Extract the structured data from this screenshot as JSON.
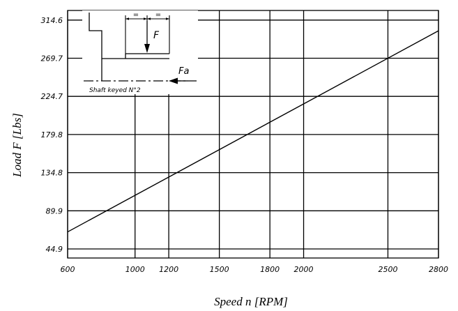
{
  "chart_data": {
    "type": "line",
    "xlabel": "Speed n [RPM]",
    "ylabel": "Load F [Lbs]",
    "x_ticks": [
      600,
      1000,
      1200,
      1500,
      1800,
      2000,
      2500,
      2800
    ],
    "y_ticks": [
      "44.9",
      "89.9",
      "134.8",
      "179.8",
      "224.7",
      "269.7",
      "314.6"
    ],
    "xlim": [
      600,
      2800
    ],
    "ylim": [
      44.9,
      314.6
    ],
    "grid": true,
    "series": [
      {
        "x": [
          600,
          2800
        ],
        "y": [
          65,
          302
        ]
      }
    ]
  },
  "inset": {
    "force_label": "F",
    "axial_force_label": "Fa",
    "dim_left": "=",
    "dim_right": "=",
    "caption": "Shaft keyed N°2"
  },
  "colors": {
    "line": "#000000",
    "grid": "#000000"
  }
}
